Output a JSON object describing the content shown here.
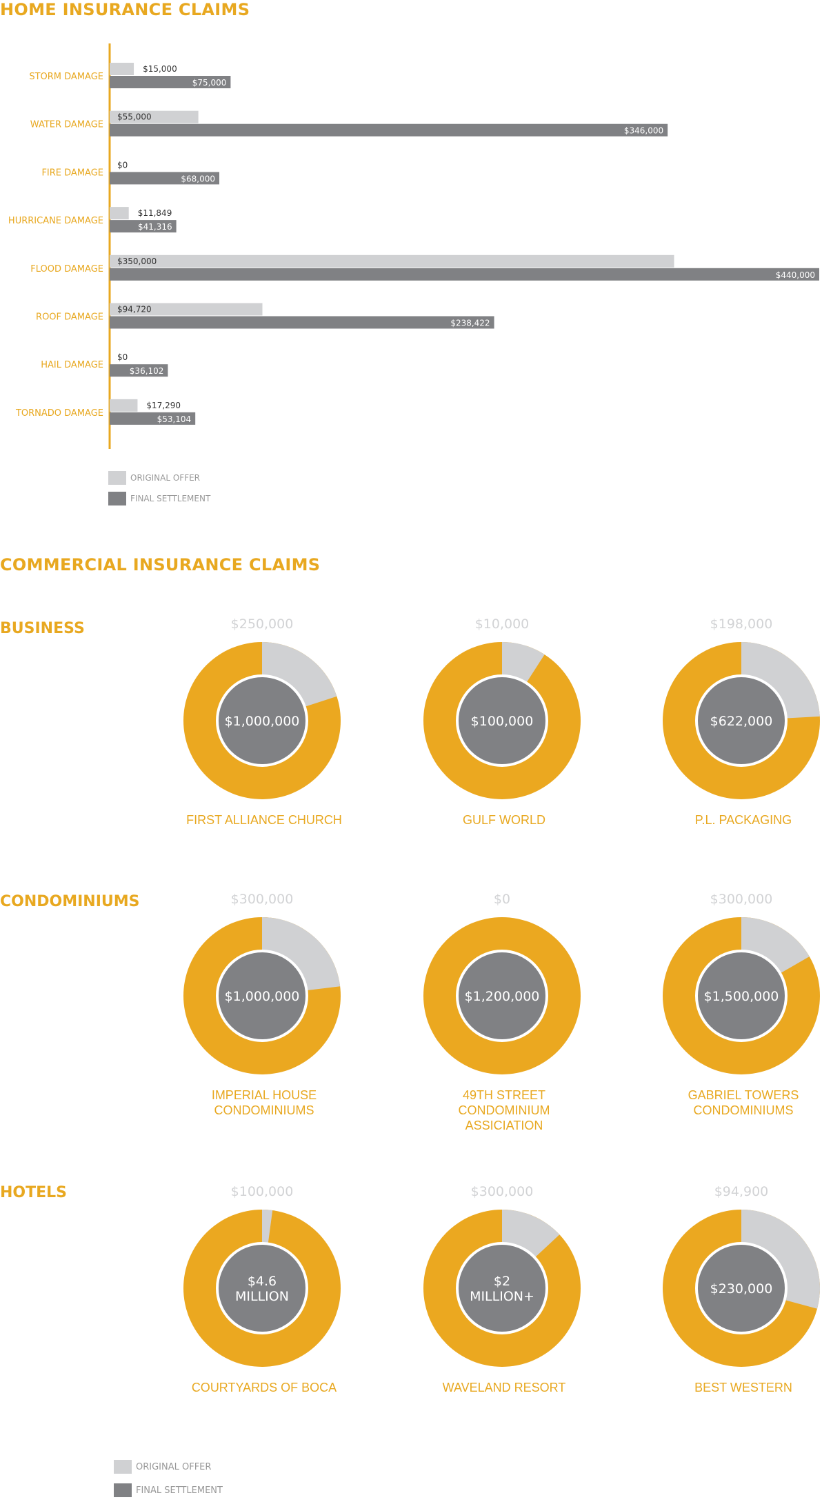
{
  "home_title": "HOME INSURANCE CLAIMS",
  "commercial_title": "COMMERCIAL INSURANCE CLAIMS",
  "colors": {
    "accent": "#e8a820",
    "original": "#d0d1d3",
    "final": "#808184",
    "donut": "#eba820"
  },
  "legend_home": {
    "original": "ORIGINAL OFFER",
    "final": "FINAL SETTLEMENT"
  },
  "legend_commercial": {
    "original": "ORIGINAL OFFER",
    "final": "FINAL SETTLEMENT"
  },
  "chart_data": [
    {
      "type": "bar",
      "orientation": "horizontal",
      "title": "HOME INSURANCE CLAIMS",
      "categories": [
        "STORM DAMAGE",
        "WATER DAMAGE",
        "FIRE DAMAGE",
        "HURRICANE DAMAGE",
        "FLOOD DAMAGE",
        "ROOF DAMAGE",
        "HAIL DAMAGE",
        "TORNADO DAMAGE"
      ],
      "series": [
        {
          "name": "ORIGINAL OFFER",
          "values": [
            15000,
            55000,
            0,
            11849,
            350000,
            94720,
            0,
            17290
          ],
          "labels": [
            "$15,000",
            "$55,000",
            "$0",
            "$11,849",
            "$350,000",
            "$94,720",
            "$0",
            "$17,290"
          ]
        },
        {
          "name": "FINAL SETTLEMENT",
          "values": [
            75000,
            346000,
            68000,
            41316,
            440000,
            238422,
            36102,
            53104
          ],
          "labels": [
            "$75,000",
            "$346,000",
            "$68,000",
            "$41,316",
            "$440,000",
            "$238,422",
            "$36,102",
            "$53,104"
          ]
        }
      ],
      "xlim": [
        0,
        440000
      ],
      "grid": false,
      "legend": "bottom-left"
    },
    {
      "type": "pie",
      "variant": "donut",
      "title": "BUSINESS",
      "items": [
        {
          "name": "FIRST ALLIANCE CHURCH",
          "original": 250000,
          "final": 1000000,
          "original_label": "$250,000",
          "final_label": "$1,000,000"
        },
        {
          "name": "GULF WORLD",
          "original": 10000,
          "final": 100000,
          "original_label": "$10,000",
          "final_label": "$100,000"
        },
        {
          "name": "P.L. PACKAGING",
          "original": 198000,
          "final": 622000,
          "original_label": "$198,000",
          "final_label": "$622,000"
        }
      ]
    },
    {
      "type": "pie",
      "variant": "donut",
      "title": "CONDOMINIUMS",
      "items": [
        {
          "name": "IMPERIAL HOUSE\nCONDOMINIUMS",
          "original": 300000,
          "final": 1000000,
          "original_label": "$300,000",
          "final_label": "$1,000,000"
        },
        {
          "name": "49TH STREET\nCONDOMINIUM\nASSICIATION",
          "original": 0,
          "final": 1200000,
          "original_label": "$0",
          "final_label": "$1,200,000"
        },
        {
          "name": "GABRIEL TOWERS\nCONDOMINIUMS",
          "original": 300000,
          "final": 1500000,
          "original_label": "$300,000",
          "final_label": "$1,500,000"
        }
      ]
    },
    {
      "type": "pie",
      "variant": "donut",
      "title": "HOTELS",
      "items": [
        {
          "name": "COURTYARDS OF BOCA",
          "original": 100000,
          "final": 4600000,
          "original_label": "$100,000",
          "final_label": "$4.6\nMILLION"
        },
        {
          "name": "WAVELAND RESORT",
          "original": 300000,
          "final": 2000000,
          "original_label": "$300,000",
          "final_label": "$2\nMILLION+"
        },
        {
          "name": "BEST WESTERN",
          "original": 94900,
          "final": 230000,
          "original_label": "$94,900",
          "final_label": "$230,000"
        }
      ]
    }
  ]
}
